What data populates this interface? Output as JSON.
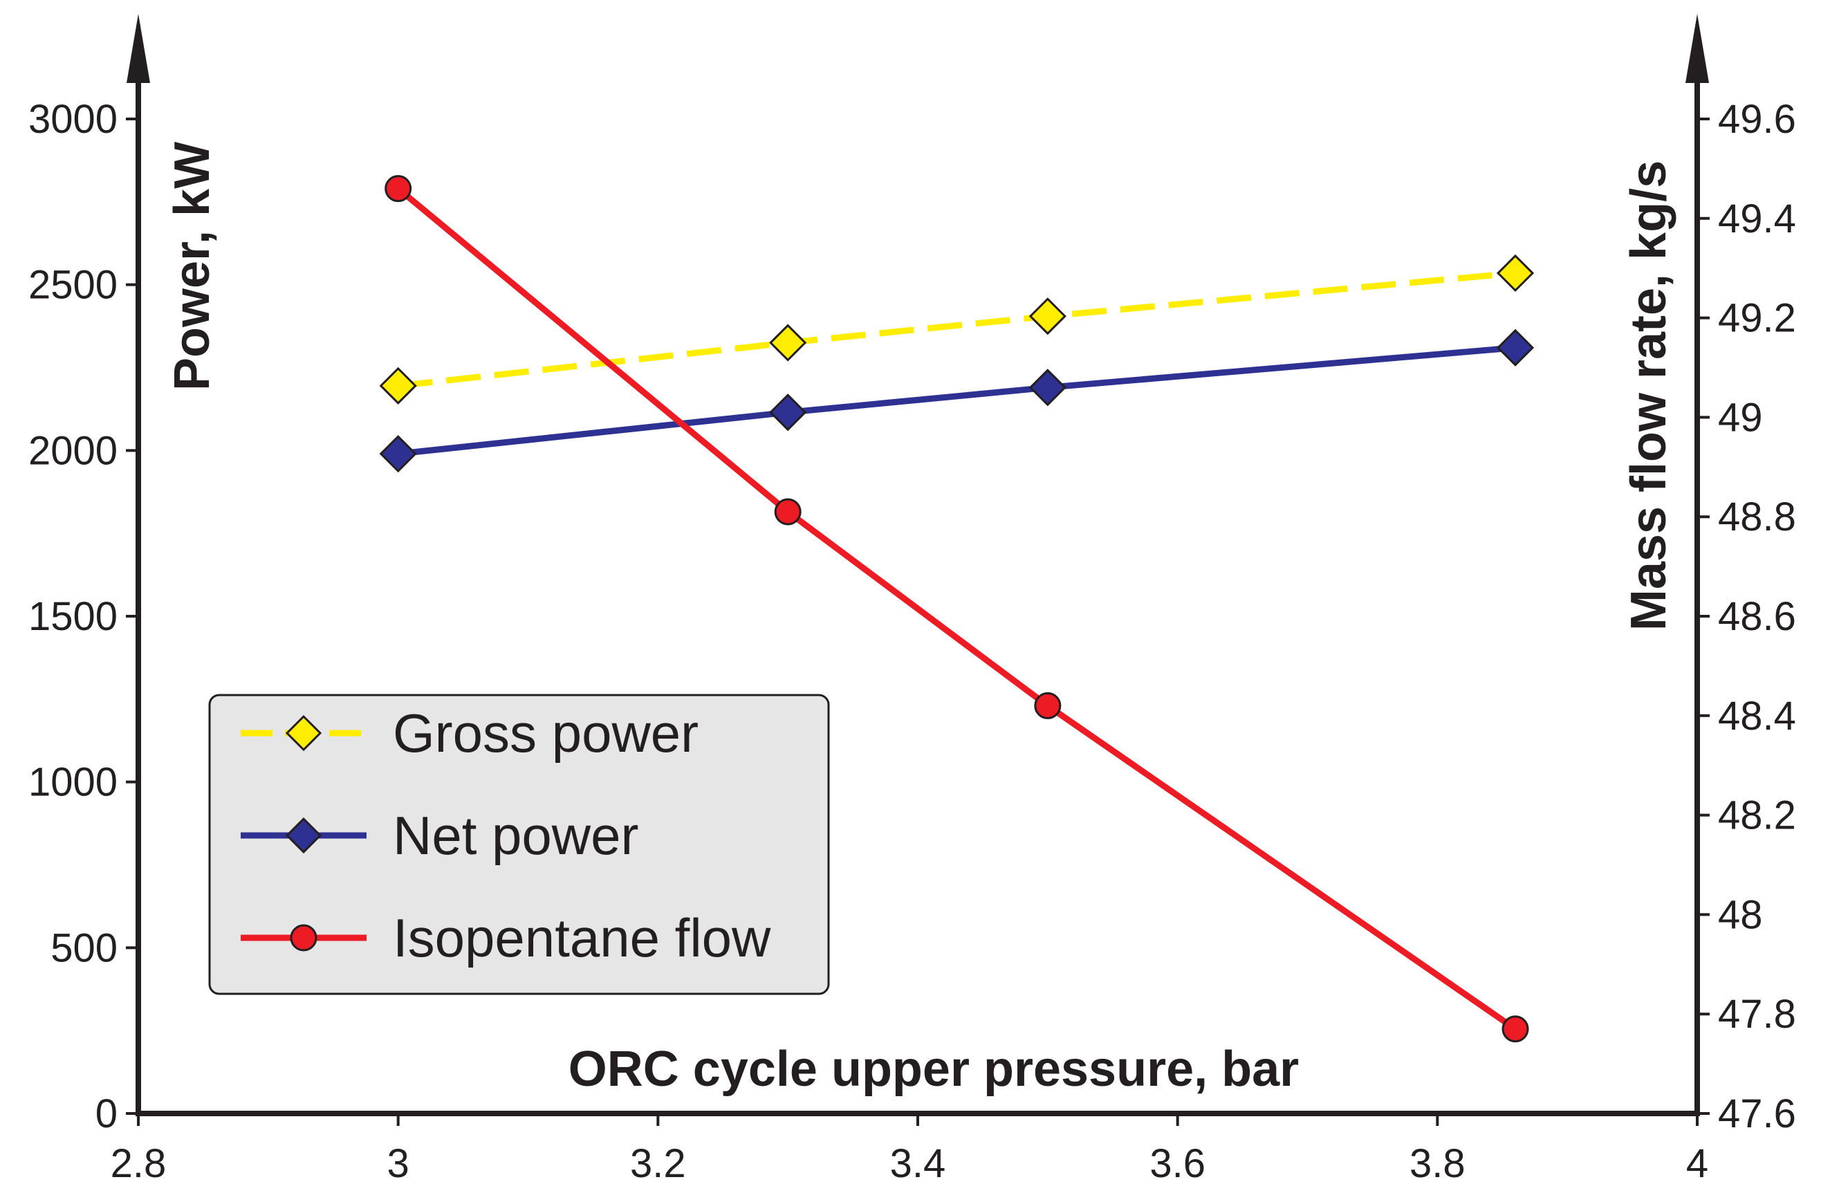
{
  "chart_data": {
    "type": "line",
    "xlabel": "ORC cycle upper pressure, bar",
    "ylabel_left": "Power, kW",
    "ylabel_right": "Mass flow rate, kg/s",
    "xlim": [
      2.8,
      4
    ],
    "ylim_left": [
      0,
      3000
    ],
    "ylim_right": [
      47.6,
      49.6
    ],
    "x_ticks": [
      "2.8",
      "3",
      "3.2",
      "3.4",
      "3.6",
      "3.8",
      "4"
    ],
    "y_left_ticks": [
      "0",
      "500",
      "1000",
      "1500",
      "2000",
      "2500",
      "3000"
    ],
    "y_right_ticks": [
      "47.6",
      "47.8",
      "48",
      "48.2",
      "48.4",
      "48.6",
      "48.8",
      "49",
      "49.2",
      "49.4",
      "49.6"
    ],
    "grid": false,
    "legend_position": "lower-left",
    "series": [
      {
        "name": "Gross power",
        "axis": "left",
        "color": "#ffed00",
        "line_style": "dashed",
        "marker": "diamond",
        "x": [
          3,
          3.3,
          3.5,
          3.86
        ],
        "values": [
          2195,
          2325,
          2405,
          2535
        ]
      },
      {
        "name": "Net power",
        "axis": "left",
        "color": "#2e3192",
        "line_style": "solid",
        "marker": "diamond",
        "x": [
          3,
          3.3,
          3.5,
          3.86
        ],
        "values": [
          1990,
          2115,
          2190,
          2310
        ]
      },
      {
        "name": "Isopentane flow",
        "axis": "right",
        "color": "#ed1c24",
        "line_style": "solid",
        "marker": "circle",
        "x": [
          3,
          3.3,
          3.5,
          3.86
        ],
        "values": [
          49.46,
          48.81,
          48.42,
          47.77
        ]
      }
    ]
  }
}
